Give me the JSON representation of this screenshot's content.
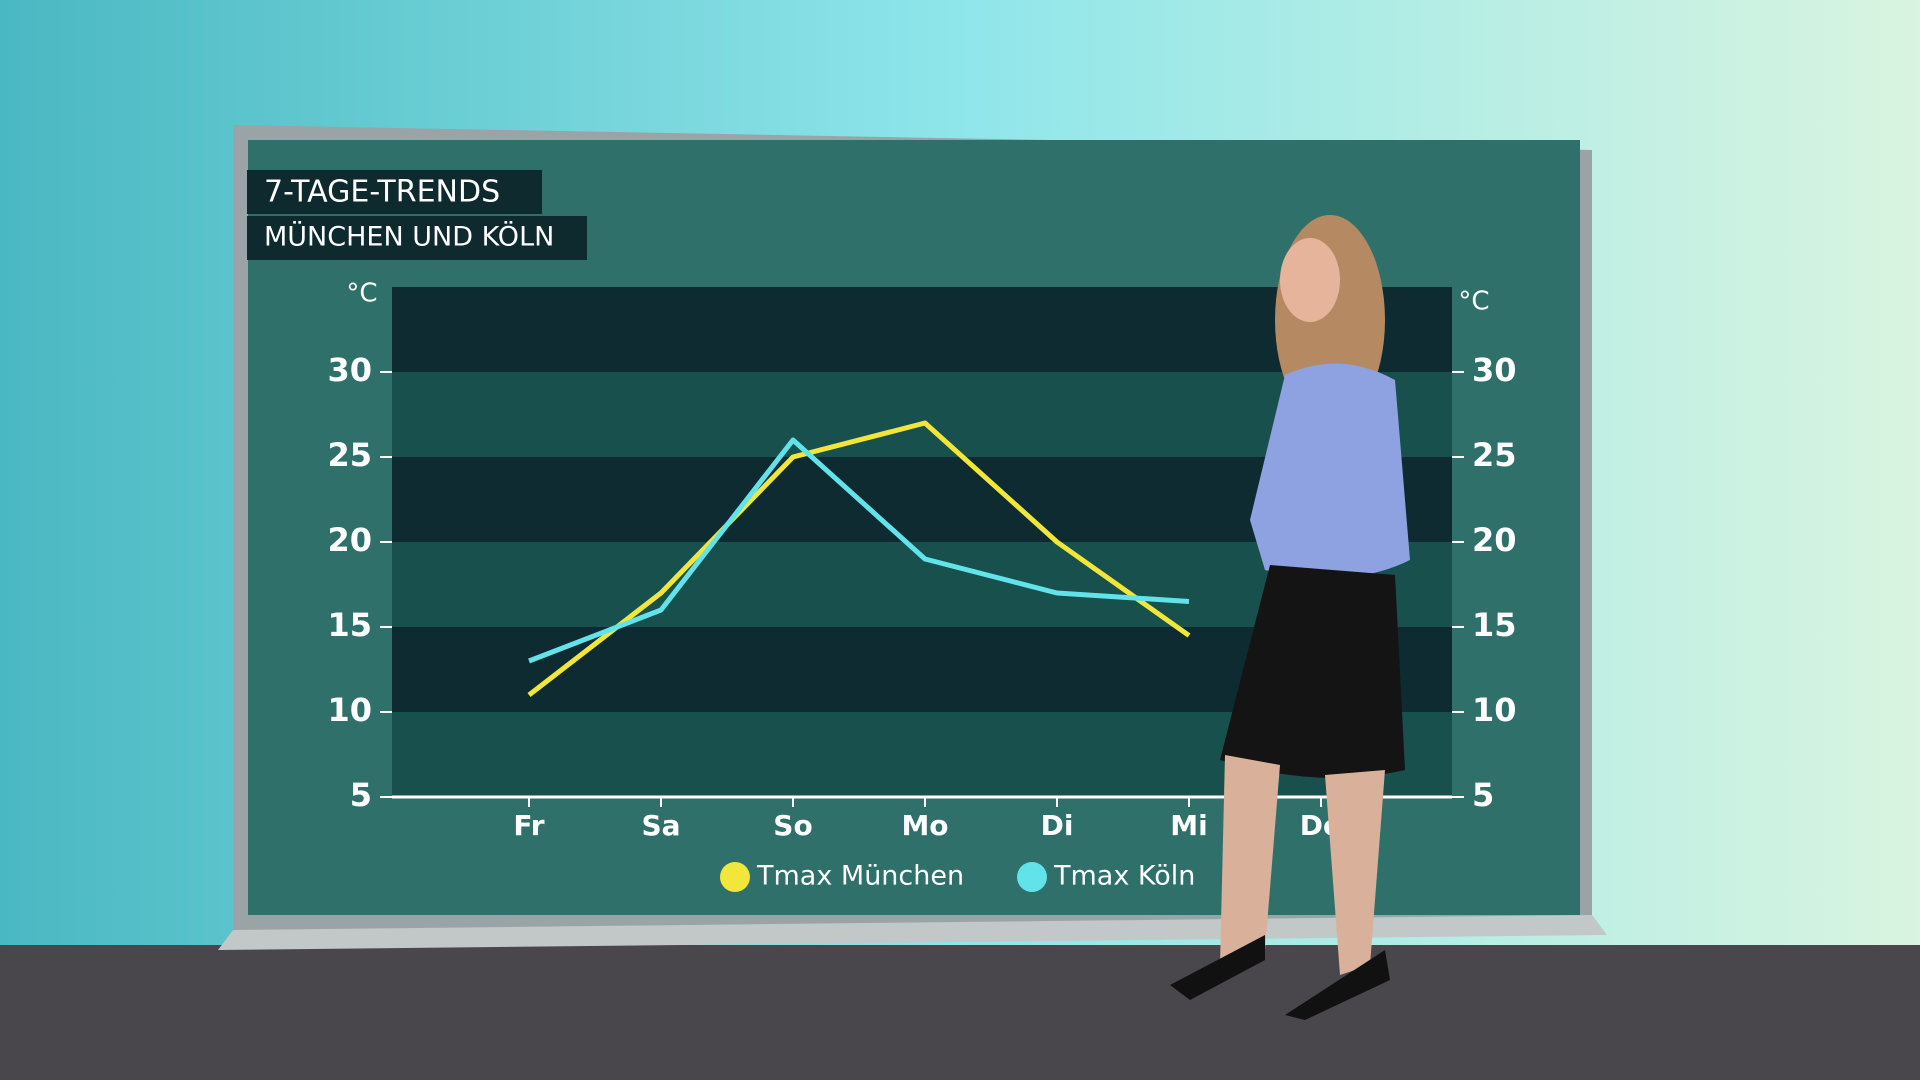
{
  "chart_data": {
    "type": "line",
    "title": "7-TAGE-TRENDS",
    "subtitle": "MÜNCHEN UND KÖLN",
    "y_label": "°C",
    "y2_label": "°C",
    "categories": [
      "Fr",
      "Sa",
      "So",
      "Mo",
      "Di",
      "Mi",
      "Do"
    ],
    "series": [
      {
        "name": "Tmax München",
        "color": "#f2e63a",
        "values": [
          11,
          17,
          25,
          27,
          20,
          14.5,
          null
        ]
      },
      {
        "name": "Tmax Köln",
        "color": "#62e3ea",
        "values": [
          13,
          16,
          26,
          19,
          17,
          16.5,
          null
        ]
      }
    ],
    "ylim": [
      5,
      35
    ],
    "yticks": [
      5,
      10,
      15,
      20,
      25,
      30
    ],
    "y2lim": [
      5,
      35
    ],
    "y2ticks": [
      5,
      10,
      15,
      20,
      25,
      30
    ],
    "bands": true,
    "legend": "bottom"
  }
}
